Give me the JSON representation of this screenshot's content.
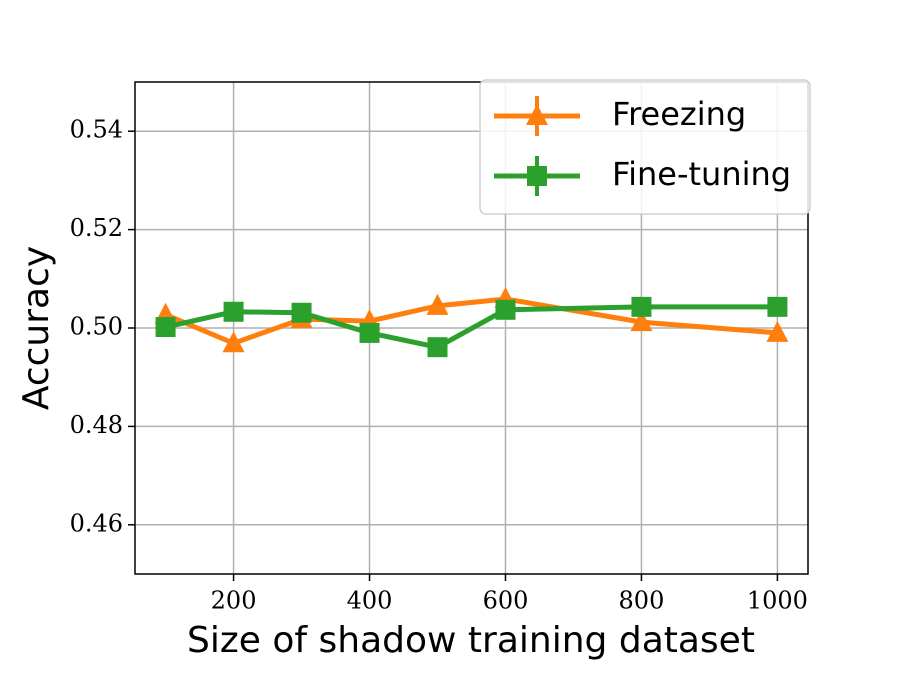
{
  "chart_data": {
    "type": "line",
    "x_label": "Size of shadow training dataset",
    "y_label": "Accuracy",
    "x": [
      100,
      200,
      300,
      400,
      500,
      600,
      800,
      1000
    ],
    "series": [
      {
        "name": "Freezing",
        "color": "#ff7f0e",
        "marker": "triangle",
        "values": [
          0.5027,
          0.4969,
          0.5018,
          0.5014,
          0.5045,
          0.5059,
          0.5012,
          0.499
        ]
      },
      {
        "name": "Fine-tuning",
        "color": "#2ca02c",
        "marker": "square",
        "values": [
          0.5002,
          0.5033,
          0.5031,
          0.499,
          0.4961,
          0.5037,
          0.5043,
          0.5043
        ]
      }
    ],
    "xlim": [
      55,
      1045
    ],
    "ylim": [
      0.45,
      0.55
    ],
    "xticks": [
      200,
      400,
      600,
      800,
      1000
    ],
    "yticks": [
      0.46,
      0.48,
      {
        "value": 0.5,
        "label": "0.50"
      },
      0.52,
      0.54
    ],
    "grid": true,
    "legend": "upper right"
  }
}
